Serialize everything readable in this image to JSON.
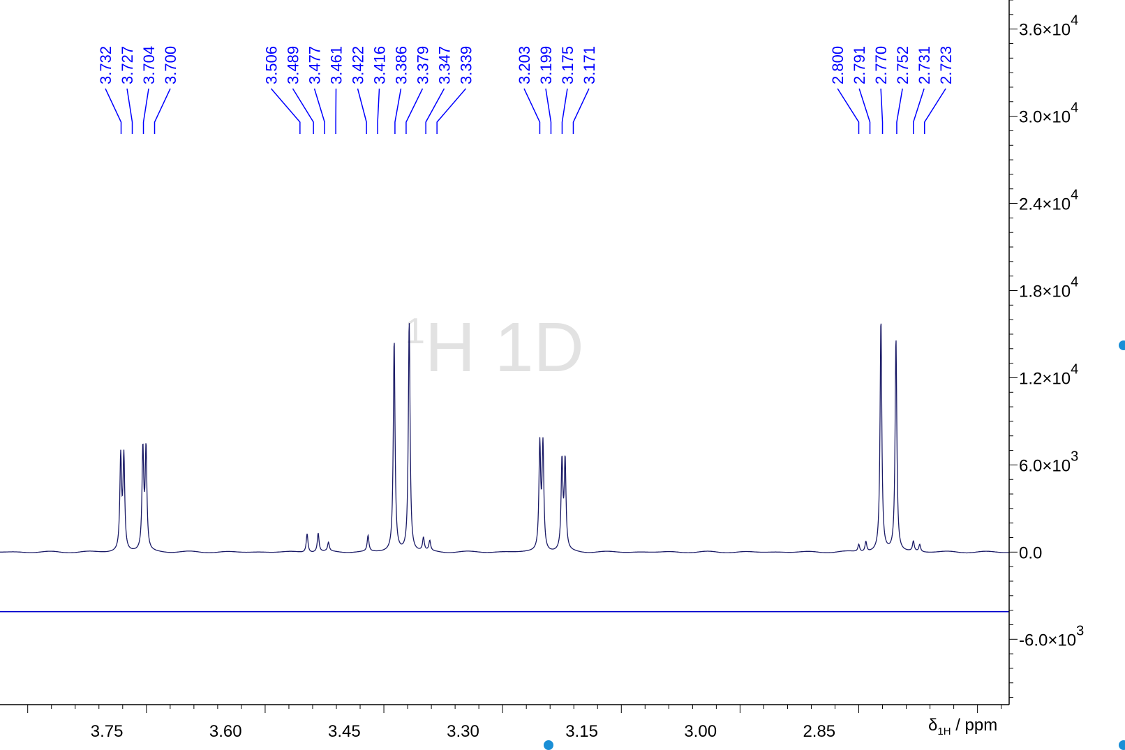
{
  "chart_data": {
    "type": "line",
    "watermark": {
      "sup": "1",
      "main": "H 1D"
    },
    "xlabel": {
      "symbol": "δ",
      "sub": "1H",
      "unit": " / ppm"
    },
    "xlim": [
      3.885,
      2.61
    ],
    "ylim": [
      -10500,
      38000
    ],
    "x_ticks": [
      "3.75",
      "3.60",
      "3.45",
      "3.30",
      "3.15",
      "3.00",
      "2.85"
    ],
    "y_ticks": [
      {
        "value": 36000,
        "mantissa": "3.6×10",
        "exp": "4"
      },
      {
        "value": 30000,
        "mantissa": "3.0×10",
        "exp": "4"
      },
      {
        "value": 24000,
        "mantissa": "2.4×10",
        "exp": "4"
      },
      {
        "value": 18000,
        "mantissa": "1.8×10",
        "exp": "4"
      },
      {
        "value": 12000,
        "mantissa": "1.2×10",
        "exp": "4"
      },
      {
        "value": 6000,
        "mantissa": "6.0×10",
        "exp": "3"
      },
      {
        "value": 0,
        "mantissa": "0.0",
        "exp": ""
      },
      {
        "value": -6000,
        "mantissa": "-6.0×10",
        "exp": "3"
      }
    ],
    "integral_baseline": -4100,
    "peak_labels": [
      {
        "group": 1,
        "labels": [
          "3.732",
          "3.727",
          "3.704",
          "3.700"
        ]
      },
      {
        "group": 2,
        "labels": [
          "3.506",
          "3.489",
          "3.477",
          "3.461",
          "3.422",
          "3.416",
          "3.386",
          "3.379",
          "3.347",
          "3.339"
        ]
      },
      {
        "group": 3,
        "labels": [
          "3.203",
          "3.199",
          "3.175",
          "3.171"
        ]
      },
      {
        "group": 4,
        "labels": [
          "2.800",
          "2.791",
          "2.770",
          "2.752",
          "2.731",
          "2.723"
        ]
      }
    ],
    "peaks": [
      {
        "x": 3.7325,
        "y": 6400
      },
      {
        "x": 3.7285,
        "y": 6400
      },
      {
        "x": 3.7045,
        "y": 6900
      },
      {
        "x": 3.7005,
        "y": 6900
      },
      {
        "x": 3.497,
        "y": 1300
      },
      {
        "x": 3.483,
        "y": 1300
      },
      {
        "x": 3.47,
        "y": 600
      },
      {
        "x": 3.42,
        "y": 1100
      },
      {
        "x": 3.387,
        "y": 14600
      },
      {
        "x": 3.368,
        "y": 15900
      },
      {
        "x": 3.35,
        "y": 900
      },
      {
        "x": 3.342,
        "y": 700
      },
      {
        "x": 3.203,
        "y": 7200
      },
      {
        "x": 3.199,
        "y": 7200
      },
      {
        "x": 3.175,
        "y": 6100
      },
      {
        "x": 3.171,
        "y": 6100
      },
      {
        "x": 2.8,
        "y": 500
      },
      {
        "x": 2.791,
        "y": 700
      },
      {
        "x": 2.772,
        "y": 16000
      },
      {
        "x": 2.753,
        "y": 14700
      },
      {
        "x": 2.731,
        "y": 700
      },
      {
        "x": 2.723,
        "y": 500
      }
    ]
  },
  "colors": {
    "spectrum": "#1a1a66",
    "peak_label": "#0000ff",
    "integral_line": "#0000cc",
    "axis": "#000000",
    "watermark": "#e2e2e2",
    "handle": "#1a8fd6"
  }
}
